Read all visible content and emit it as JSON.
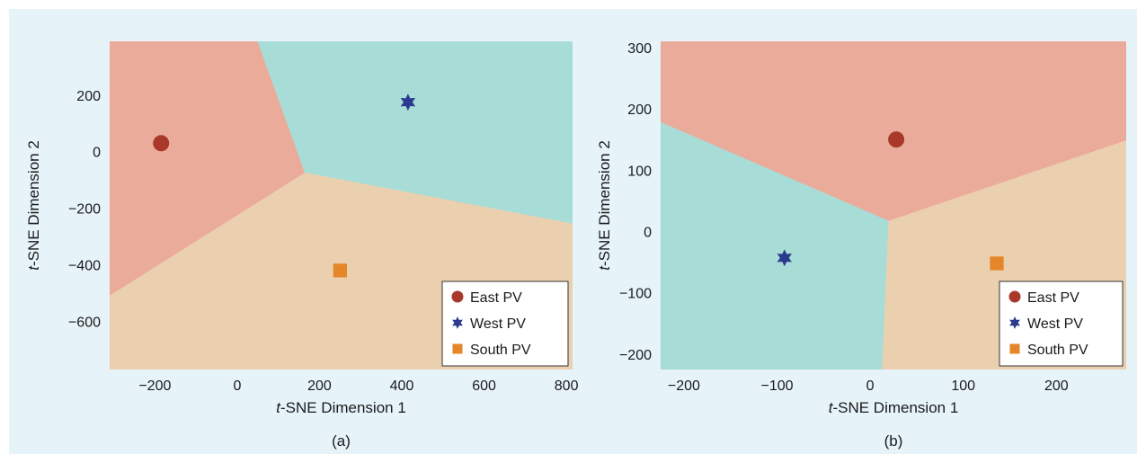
{
  "chart_data": [
    {
      "type": "scatter",
      "panel_label": "(a)",
      "xlabel_prefix": "t",
      "xlabel_rest": "-SNE Dimension 1",
      "ylabel_prefix": "t",
      "ylabel_rest": "-SNE Dimension 2",
      "xlim": [
        -310,
        815
      ],
      "ylim": [
        -770,
        390
      ],
      "xticks": [
        -200,
        0,
        200,
        400,
        600,
        800
      ],
      "xtick_labels": [
        "−200",
        "0",
        "200",
        "400",
        "600",
        "800"
      ],
      "yticks": [
        200,
        0,
        -200,
        -400,
        -600
      ],
      "ytick_labels": [
        "200",
        "0",
        "−200",
        "−400",
        "−600"
      ],
      "regions": [
        {
          "name": "East PV",
          "color": "#ebab9b",
          "polygon": [
            [
              -310,
              390
            ],
            [
              50,
              390
            ],
            [
              165,
              -75
            ],
            [
              -310,
              -510
            ]
          ]
        },
        {
          "name": "West PV",
          "color": "#a8dcd6",
          "polygon": [
            [
              50,
              390
            ],
            [
              815,
              390
            ],
            [
              815,
              -255
            ],
            [
              165,
              -75
            ]
          ]
        },
        {
          "name": "South PV",
          "color": "#ebd0b0",
          "polygon": [
            [
              165,
              -75
            ],
            [
              815,
              -255
            ],
            [
              815,
              -770
            ],
            [
              -310,
              -770
            ],
            [
              -310,
              -510
            ]
          ]
        }
      ],
      "series": [
        {
          "name": "East PV",
          "marker": "circle",
          "color": "#a8382a",
          "x": -185,
          "y": 30
        },
        {
          "name": "West PV",
          "marker": "star",
          "color": "#2b3a8f",
          "x": 415,
          "y": 175
        },
        {
          "name": "South PV",
          "marker": "square",
          "color": "#e5862a",
          "x": 250,
          "y": -420
        }
      ],
      "legend_position": "bottom-right"
    },
    {
      "type": "scatter",
      "panel_label": "(b)",
      "xlabel_prefix": "t",
      "xlabel_rest": "-SNE Dimension 1",
      "ylabel_prefix": "t",
      "ylabel_rest": "-SNE Dimension 2",
      "xlim": [
        -225,
        275
      ],
      "ylim": [
        -225,
        310
      ],
      "xticks": [
        -200,
        -100,
        0,
        100,
        200
      ],
      "xtick_labels": [
        "−200",
        "−100",
        "0",
        "100",
        "200"
      ],
      "yticks": [
        300,
        200,
        100,
        0,
        -100,
        -200
      ],
      "ytick_labels": [
        "300",
        "200",
        "100",
        "0",
        "−100",
        "−200"
      ],
      "regions": [
        {
          "name": "East PV",
          "color": "#ebab9b",
          "polygon": [
            [
              -225,
              310
            ],
            [
              275,
              310
            ],
            [
              275,
              148
            ],
            [
              20,
              17
            ],
            [
              -225,
              178
            ]
          ]
        },
        {
          "name": "West PV",
          "color": "#a8dcd6",
          "polygon": [
            [
              -225,
              178
            ],
            [
              20,
              17
            ],
            [
              13,
              -225
            ],
            [
              -225,
              -225
            ]
          ]
        },
        {
          "name": "South PV",
          "color": "#ebd0b0",
          "polygon": [
            [
              20,
              17
            ],
            [
              275,
              148
            ],
            [
              275,
              -225
            ],
            [
              13,
              -225
            ]
          ]
        }
      ],
      "series": [
        {
          "name": "East PV",
          "marker": "circle",
          "color": "#a8382a",
          "x": 28,
          "y": 150
        },
        {
          "name": "West PV",
          "marker": "star",
          "color": "#2b3a8f",
          "x": -92,
          "y": -43
        },
        {
          "name": "South PV",
          "marker": "square",
          "color": "#e5862a",
          "x": 136,
          "y": -52
        }
      ],
      "legend_position": "bottom-right"
    }
  ]
}
